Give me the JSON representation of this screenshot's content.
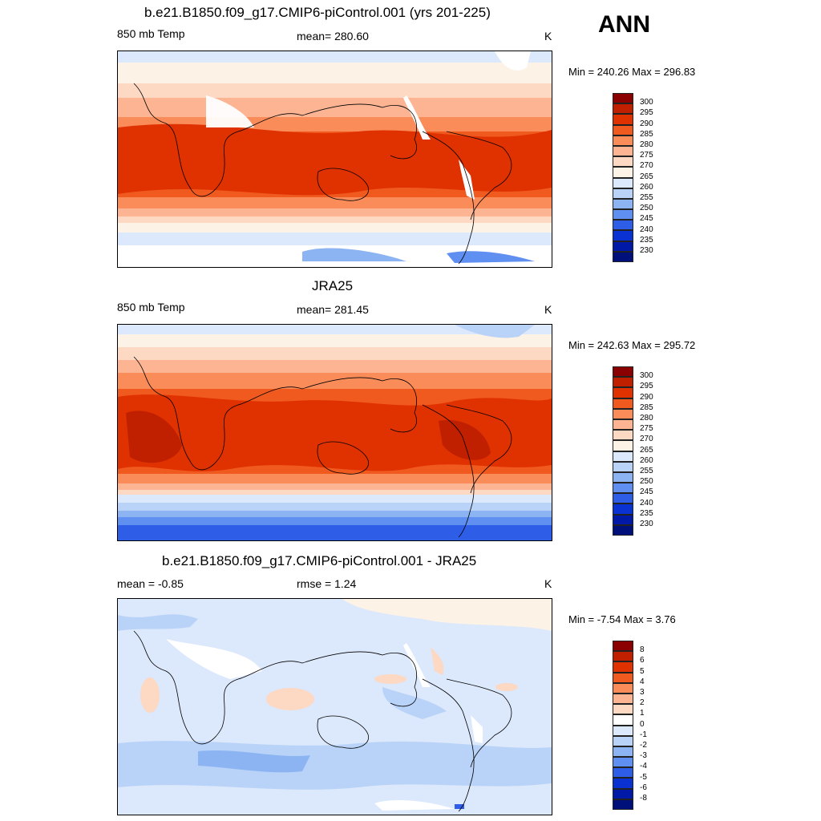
{
  "season": "ANN",
  "panels": [
    {
      "title": "b.e21.B1850.f09_g17.CMIP6-piControl.001 (yrs 201-225)",
      "left_label": "850 mb Temp",
      "center_label": "mean= 280.60",
      "units": "K",
      "minmax": "Min = 240.26 Max = 296.83",
      "colorbar": {
        "colors": [
          "#8b0000",
          "#c02000",
          "#e03200",
          "#f05a1e",
          "#fa8c5a",
          "#fcb493",
          "#fdd8c3",
          "#fdf2e6",
          "#dce8fb",
          "#b9d3f8",
          "#8cb4f3",
          "#5f8ff0",
          "#2e5ee8",
          "#0a32d2",
          "#0019a6",
          "#00107a"
        ],
        "labels": [
          "300",
          "295",
          "290",
          "285",
          "280",
          "275",
          "270",
          "265",
          "260",
          "255",
          "250",
          "245",
          "240",
          "235",
          "230"
        ]
      }
    },
    {
      "title": "JRA25",
      "left_label": "850 mb Temp",
      "center_label": "mean= 281.45",
      "units": "K",
      "minmax": "Min = 242.63 Max = 295.72",
      "colorbar": {
        "colors": [
          "#8b0000",
          "#c02000",
          "#e03200",
          "#f05a1e",
          "#fa8c5a",
          "#fcb493",
          "#fdd8c3",
          "#fdf2e6",
          "#dce8fb",
          "#b9d3f8",
          "#8cb4f3",
          "#5f8ff0",
          "#2e5ee8",
          "#0a32d2",
          "#0019a6",
          "#00107a"
        ],
        "labels": [
          "300",
          "295",
          "290",
          "285",
          "280",
          "275",
          "270",
          "265",
          "260",
          "255",
          "250",
          "245",
          "240",
          "235",
          "230"
        ]
      }
    },
    {
      "title": "b.e21.B1850.f09_g17.CMIP6-piControl.001 - JRA25",
      "left_label": "mean =  -0.85",
      "center_label": "rmse =   1.24",
      "units": "K",
      "minmax": "Min =  -7.54 Max =   3.76",
      "colorbar": {
        "colors": [
          "#8b0000",
          "#c02000",
          "#e03200",
          "#f05a1e",
          "#fa8c5a",
          "#fcb493",
          "#fdd8c3",
          "#ffffff",
          "#dce8fb",
          "#b9d3f8",
          "#8cb4f3",
          "#5f8ff0",
          "#2e5ee8",
          "#0a32d2",
          "#0019a6",
          "#00107a"
        ],
        "labels": [
          "8",
          "6",
          "5",
          "4",
          "3",
          "2",
          "1",
          "0",
          "-1",
          "-2",
          "-3",
          "-4",
          "-5",
          "-6",
          "-8"
        ]
      }
    }
  ]
}
